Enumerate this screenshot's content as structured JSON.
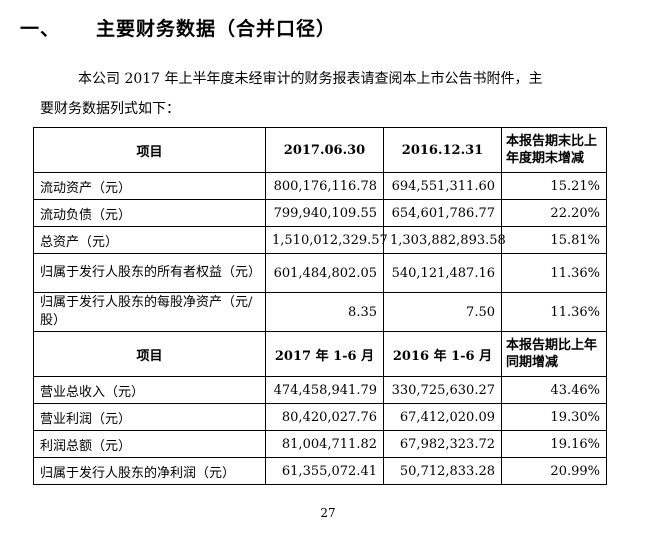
{
  "heading": {
    "number": "一、",
    "title": "主要财务数据（合并口径）"
  },
  "intro": {
    "line1": "本公司 2017 年上半年度未经审计的财务报表请查阅本上市公告书附件，主",
    "line2": "要财务数据列式如下："
  },
  "table": {
    "section1": {
      "headers": [
        "项目",
        "2017.06.30",
        "2016.12.31",
        "本报告期末比上年度期末增减"
      ],
      "rows": [
        {
          "label": "流动资产（元）",
          "v1": "800,176,116.78",
          "v2": "694,551,311.60",
          "change": "15.21%"
        },
        {
          "label": "流动负债（元）",
          "v1": "799,940,109.55",
          "v2": "654,601,786.77",
          "change": "22.20%"
        },
        {
          "label": "总资产（元）",
          "v1": "1,510,012,329.57",
          "v2": "1,303,882,893.58",
          "change": "15.81%"
        },
        {
          "label": "归属于发行人股东的所有者权益（元）",
          "v1": "601,484,802.05",
          "v2": "540,121,487.16",
          "change": "11.36%"
        },
        {
          "label": "归属于发行人股东的每股净资产（元/股）",
          "v1": "8.35",
          "v2": "7.50",
          "change": "11.36%"
        }
      ]
    },
    "section2": {
      "headers": [
        "项目",
        "2017 年 1-6 月",
        "2016 年 1-6 月",
        "本报告期比上年同期增减"
      ],
      "rows": [
        {
          "label": "营业总收入（元）",
          "v1": "474,458,941.79",
          "v2": "330,725,630.27",
          "change": "43.46%"
        },
        {
          "label": "营业利润（元）",
          "v1": "80,420,027.76",
          "v2": "67,412,020.09",
          "change": "19.30%"
        },
        {
          "label": "利润总额（元）",
          "v1": "81,004,711.82",
          "v2": "67,982,323.72",
          "change": "19.16%"
        },
        {
          "label": "归属于发行人股东的净利润（元）",
          "v1": "61,355,072.41",
          "v2": "50,712,833.28",
          "change": "20.99%"
        }
      ]
    }
  },
  "page_number": "27"
}
